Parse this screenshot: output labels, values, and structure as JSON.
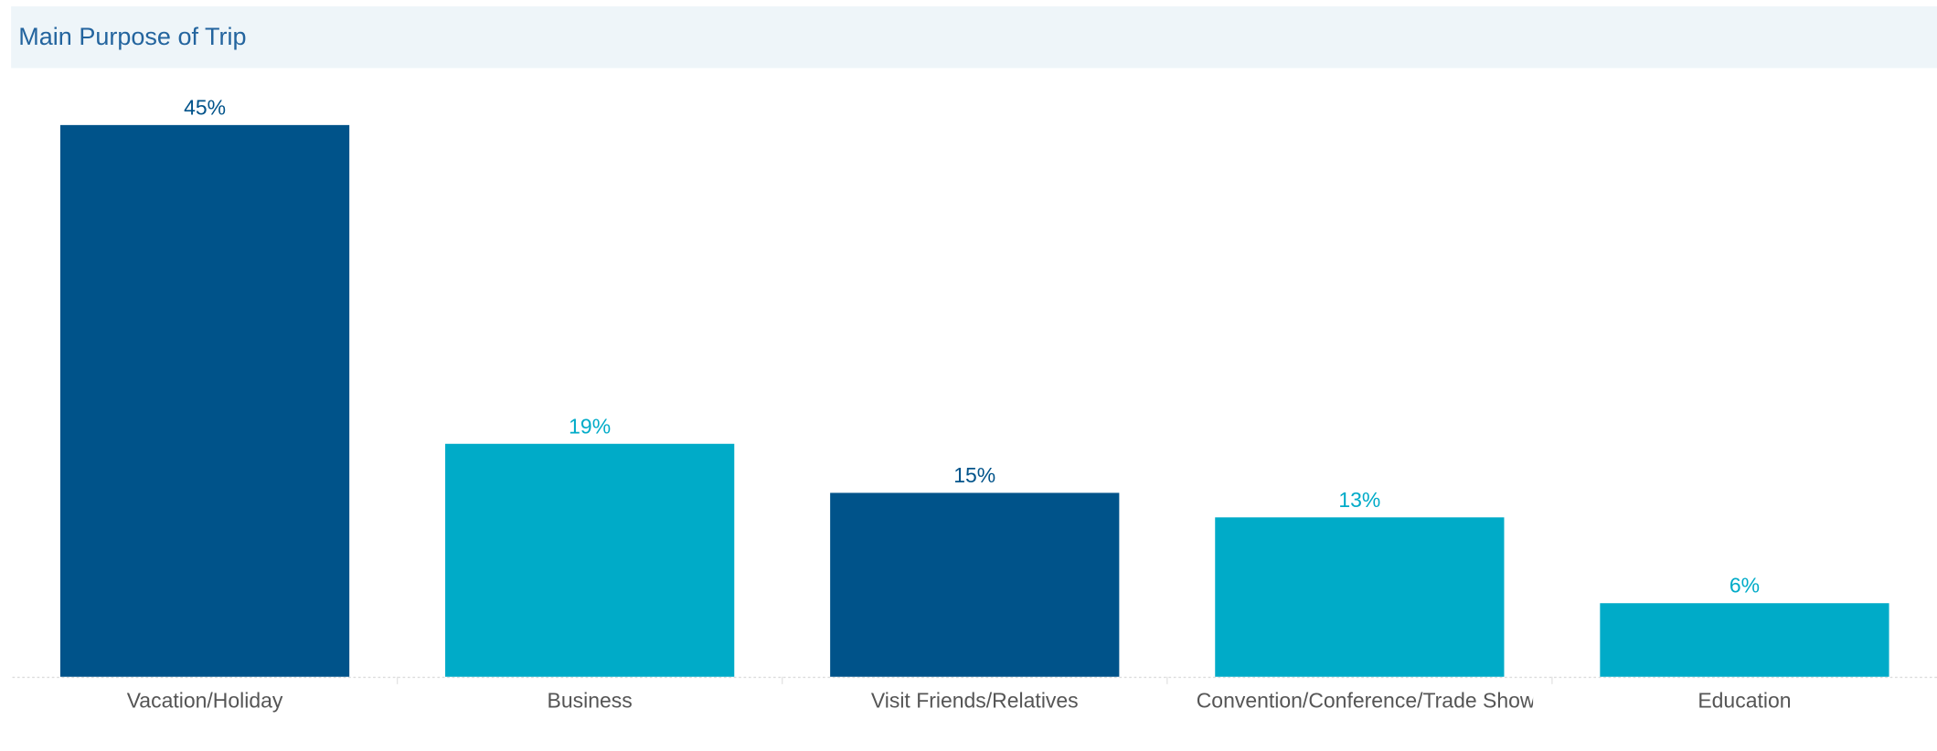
{
  "chart_data": {
    "type": "bar",
    "title": "Main Purpose of Trip",
    "categories": [
      "Vacation/Holiday",
      "Business",
      "Visit Friends/Relatives",
      "Convention/Conference/Trade Show",
      "Education"
    ],
    "values": [
      45,
      19,
      15,
      13,
      6
    ],
    "value_labels": [
      "45%",
      "19%",
      "15%",
      "13%",
      "6%"
    ],
    "colors": [
      "#00538a",
      "#00abc8",
      "#00538a",
      "#00abc8",
      "#00abc8"
    ]
  }
}
